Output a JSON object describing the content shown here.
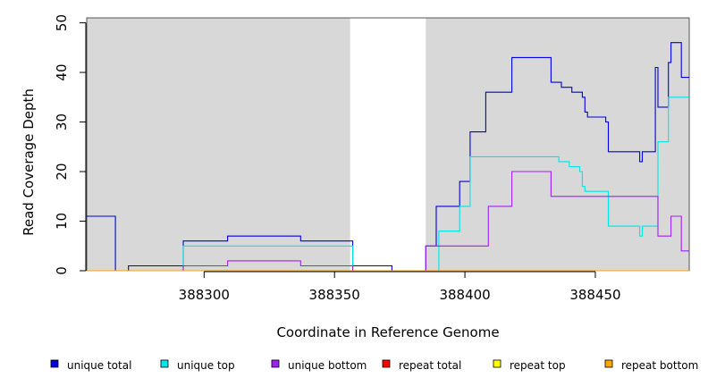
{
  "chart_data": {
    "type": "line",
    "xlabel": "Coordinate in Reference Genome",
    "ylabel": "Read Coverage Depth",
    "xlim": [
      388255,
      388486
    ],
    "ylim": [
      0,
      51
    ],
    "xticks": [
      388300,
      388350,
      388400,
      388450
    ],
    "yticks": [
      0,
      10,
      20,
      30,
      40,
      50
    ],
    "shaded_regions": [
      {
        "x0": 388255,
        "x1": 388356,
        "color": "#d8d8d8"
      },
      {
        "x0": 388385,
        "x1": 388486,
        "color": "#d8d8d8"
      }
    ],
    "series": [
      {
        "name": "unique total",
        "color": "#0000dd",
        "points": [
          [
            388255,
            11
          ],
          [
            388266,
            11
          ],
          [
            388266,
            0
          ],
          [
            388271,
            0
          ],
          [
            388271,
            1
          ],
          [
            388292,
            1
          ],
          [
            388292,
            6
          ],
          [
            388309,
            6
          ],
          [
            388309,
            7
          ],
          [
            388337,
            7
          ],
          [
            388337,
            6
          ],
          [
            388357,
            6
          ],
          [
            388357,
            1
          ],
          [
            388372,
            1
          ],
          [
            388372,
            0
          ],
          [
            388385,
            0
          ],
          [
            388385,
            5
          ],
          [
            388389,
            5
          ],
          [
            388389,
            13
          ],
          [
            388398,
            13
          ],
          [
            388398,
            18
          ],
          [
            388402,
            18
          ],
          [
            388402,
            28
          ],
          [
            388408,
            28
          ],
          [
            388408,
            36
          ],
          [
            388418,
            36
          ],
          [
            388418,
            43
          ],
          [
            388433,
            43
          ],
          [
            388433,
            38
          ],
          [
            388437,
            38
          ],
          [
            388437,
            37
          ],
          [
            388441,
            37
          ],
          [
            388441,
            36
          ],
          [
            388445,
            36
          ],
          [
            388445,
            35
          ],
          [
            388446,
            35
          ],
          [
            388446,
            32
          ],
          [
            388447,
            32
          ],
          [
            388447,
            31
          ],
          [
            388454,
            31
          ],
          [
            388454,
            30
          ],
          [
            388455,
            30
          ],
          [
            388455,
            24
          ],
          [
            388467,
            24
          ],
          [
            388467,
            22
          ],
          [
            388468,
            22
          ],
          [
            388468,
            24
          ],
          [
            388473,
            24
          ],
          [
            388473,
            41
          ],
          [
            388474,
            41
          ],
          [
            388474,
            33
          ],
          [
            388478,
            33
          ],
          [
            388478,
            42
          ],
          [
            388479,
            42
          ],
          [
            388479,
            46
          ],
          [
            388483,
            46
          ],
          [
            388483,
            39
          ],
          [
            388486,
            39
          ]
        ]
      },
      {
        "name": "unique top",
        "color": "#00e5e5",
        "points": [
          [
            388255,
            0
          ],
          [
            388292,
            0
          ],
          [
            388292,
            5
          ],
          [
            388357,
            5
          ],
          [
            388357,
            0
          ],
          [
            388390,
            0
          ],
          [
            388390,
            8
          ],
          [
            388398,
            8
          ],
          [
            388398,
            13
          ],
          [
            388402,
            13
          ],
          [
            388402,
            23
          ],
          [
            388436,
            23
          ],
          [
            388436,
            22
          ],
          [
            388440,
            22
          ],
          [
            388440,
            21
          ],
          [
            388444,
            21
          ],
          [
            388444,
            20
          ],
          [
            388445,
            20
          ],
          [
            388445,
            17
          ],
          [
            388446,
            17
          ],
          [
            388446,
            16
          ],
          [
            388455,
            16
          ],
          [
            388455,
            9
          ],
          [
            388467,
            9
          ],
          [
            388467,
            7
          ],
          [
            388468,
            7
          ],
          [
            388468,
            9
          ],
          [
            388474,
            9
          ],
          [
            388474,
            26
          ],
          [
            388478,
            26
          ],
          [
            388478,
            35
          ],
          [
            388486,
            35
          ]
        ]
      },
      {
        "name": "unique bottom",
        "color": "#a020f0",
        "points": [
          [
            388255,
            0
          ],
          [
            388292,
            0
          ],
          [
            388292,
            1
          ],
          [
            388309,
            1
          ],
          [
            388309,
            2
          ],
          [
            388337,
            2
          ],
          [
            388337,
            1
          ],
          [
            388357,
            1
          ],
          [
            388357,
            0
          ],
          [
            388385,
            0
          ],
          [
            388385,
            5
          ],
          [
            388409,
            5
          ],
          [
            388409,
            13
          ],
          [
            388418,
            13
          ],
          [
            388418,
            20
          ],
          [
            388433,
            20
          ],
          [
            388433,
            15
          ],
          [
            388474,
            15
          ],
          [
            388474,
            7
          ],
          [
            388479,
            7
          ],
          [
            388479,
            11
          ],
          [
            388483,
            11
          ],
          [
            388483,
            4
          ],
          [
            388486,
            4
          ]
        ]
      },
      {
        "name": "repeat total",
        "color": "#ff0000",
        "points": [
          [
            388255,
            0
          ],
          [
            388486,
            0
          ]
        ]
      },
      {
        "name": "repeat top",
        "color": "#ffff00",
        "points": [
          [
            388255,
            0
          ],
          [
            388486,
            0
          ]
        ]
      },
      {
        "name": "repeat bottom",
        "color": "#ffa500",
        "points": [
          [
            388255,
            0
          ],
          [
            388486,
            0
          ]
        ]
      }
    ],
    "legend_position": "bottom"
  }
}
